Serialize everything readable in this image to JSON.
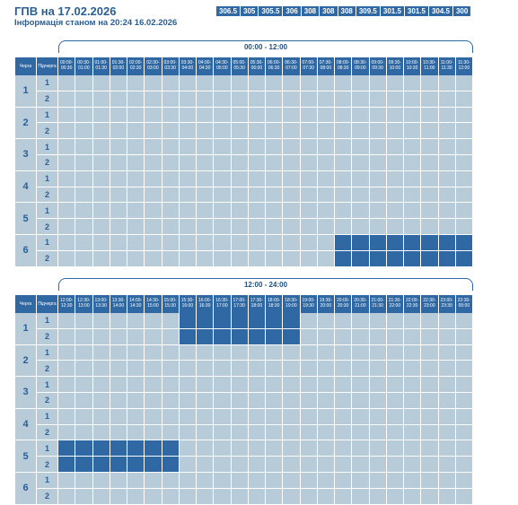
{
  "page": {
    "title": "ГПВ на 17.02.2026",
    "subtitle": "Інформація станом на 20:24 16.02.2026"
  },
  "values": [
    "306.5",
    "305",
    "305.5",
    "306",
    "308",
    "308",
    "308",
    "309.5",
    "301.5",
    "301.5",
    "304.5",
    "300"
  ],
  "labels": {
    "queue": "Черга",
    "subqueue": "Підчерга"
  },
  "schedules": [
    {
      "name": "00:00 - 12:00",
      "slots": [
        "00:00-00:30",
        "00:30-01:00",
        "01:00-01:30",
        "01:30-02:00",
        "02:00-02:30",
        "02:30-03:00",
        "03:00-03:30",
        "03:30-04:00",
        "04:00-04:30",
        "04:30-05:00",
        "05:00-05:30",
        "05:30-06:00",
        "06:00-06:30",
        "06:30-07:00",
        "07:00-07:30",
        "07:30-08:00",
        "08:00-08:30",
        "08:30-09:00",
        "09:00-09:30",
        "09:30-10:00",
        "10:00-10:30",
        "10:30-11:00",
        "11:00-11:30",
        "11:30-12:00"
      ],
      "outages": [
        [
          [],
          []
        ],
        [
          [],
          []
        ],
        [
          [],
          []
        ],
        [
          [],
          []
        ],
        [
          [],
          []
        ],
        [
          [
            16,
            17,
            18,
            19,
            20,
            21,
            22,
            23
          ],
          [
            16,
            17,
            18,
            19,
            20,
            21,
            22,
            23
          ]
        ]
      ]
    },
    {
      "name": "12:00 - 24:00",
      "slots": [
        "12:00-12:30",
        "12:30-13:00",
        "13:00-13:30",
        "13:30-14:00",
        "14:00-14:30",
        "14:30-15:00",
        "15:00-15:30",
        "15:30-16:00",
        "16:00-16:30",
        "16:30-17:00",
        "17:00-17:30",
        "17:30-18:00",
        "18:00-18:30",
        "18:30-19:00",
        "19:00-19:30",
        "19:30-20:00",
        "20:00-20:30",
        "20:30-21:00",
        "21:00-21:30",
        "21:30-22:00",
        "22:00-22:30",
        "22:30-23:00",
        "23:00-23:30",
        "23:30-00:00"
      ],
      "outages": [
        [
          [
            7,
            8,
            9,
            10,
            11,
            12,
            13
          ],
          [
            7,
            8,
            9,
            10,
            11,
            12,
            13
          ]
        ],
        [
          [],
          []
        ],
        [
          [],
          []
        ],
        [
          [],
          []
        ],
        [
          [
            0,
            1,
            2,
            3,
            4,
            5,
            6
          ],
          [
            0,
            1,
            2,
            3,
            4,
            5,
            6
          ]
        ],
        [
          [],
          []
        ]
      ]
    }
  ],
  "queues": [
    "1",
    "2",
    "3",
    "4",
    "5",
    "6"
  ],
  "subqueues": [
    "1",
    "2"
  ]
}
